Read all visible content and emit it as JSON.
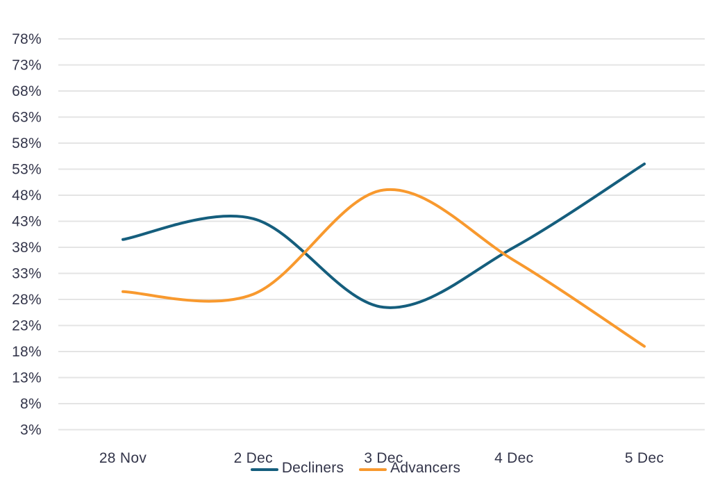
{
  "chart_data": {
    "type": "line",
    "title": "",
    "xlabel": "",
    "ylabel": "",
    "categories": [
      "28 Nov",
      "2 Dec",
      "3 Dec",
      "4 Dec",
      "5 Dec"
    ],
    "series": [
      {
        "name": "Decliners",
        "color": "#155E7D",
        "values": [
          39.5,
          43.5,
          26.5,
          38,
          54
        ]
      },
      {
        "name": "Advancers",
        "color": "#F8992E",
        "values": [
          29.5,
          29,
          49,
          35.5,
          19
        ]
      }
    ],
    "ylim": [
      3,
      78
    ],
    "ytick_step": 5,
    "ytick_suffix": "%",
    "ytick_labels": [
      "78%",
      "73%",
      "68%",
      "63%",
      "58%",
      "53%",
      "48%",
      "43%",
      "38%",
      "33%",
      "28%",
      "23%",
      "18%",
      "13%",
      "8%",
      "3%"
    ],
    "grid": "horizontal-only",
    "line_style": "smooth",
    "legend_position": "bottom-center"
  },
  "colors": {
    "background": "#FFFFFF",
    "gridline": "#E4E4E4",
    "axis_text": "#33354A"
  }
}
